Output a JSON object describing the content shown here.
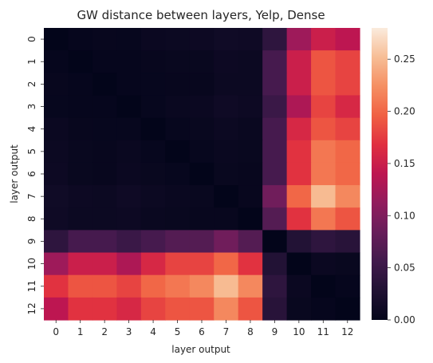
{
  "chart_data": {
    "type": "heatmap",
    "title": "GW distance between layers, Yelp, Dense",
    "xlabel": "layer output",
    "ylabel": "layer output",
    "x_categories": [
      "0",
      "1",
      "2",
      "3",
      "4",
      "5",
      "6",
      "7",
      "8",
      "9",
      "10",
      "11",
      "12"
    ],
    "y_categories": [
      "0",
      "1",
      "2",
      "3",
      "4",
      "5",
      "6",
      "7",
      "8",
      "9",
      "10",
      "11",
      "12"
    ],
    "colormap": "rocket",
    "vmin": 0.0,
    "vmax": 0.28,
    "colorbar_ticks": [
      0.0,
      0.05,
      0.1,
      0.15,
      0.2,
      0.25
    ],
    "colorbar_tick_labels": [
      "0.00",
      "0.05",
      "0.10",
      "0.15",
      "0.20",
      "0.25"
    ],
    "values": [
      [
        0.0,
        0.003,
        0.005,
        0.004,
        0.008,
        0.009,
        0.01,
        0.013,
        0.012,
        0.04,
        0.12,
        0.15,
        0.14
      ],
      [
        0.003,
        0.0,
        0.003,
        0.003,
        0.005,
        0.006,
        0.006,
        0.01,
        0.009,
        0.06,
        0.15,
        0.19,
        0.18
      ],
      [
        0.005,
        0.003,
        0.0,
        0.003,
        0.004,
        0.005,
        0.005,
        0.009,
        0.009,
        0.06,
        0.15,
        0.19,
        0.18
      ],
      [
        0.004,
        0.003,
        0.003,
        0.0,
        0.004,
        0.007,
        0.008,
        0.012,
        0.01,
        0.05,
        0.13,
        0.18,
        0.16
      ],
      [
        0.008,
        0.005,
        0.004,
        0.004,
        0.0,
        0.004,
        0.006,
        0.009,
        0.007,
        0.06,
        0.16,
        0.19,
        0.18
      ],
      [
        0.009,
        0.006,
        0.005,
        0.007,
        0.004,
        0.0,
        0.004,
        0.007,
        0.006,
        0.06,
        0.17,
        0.21,
        0.2
      ],
      [
        0.01,
        0.006,
        0.005,
        0.008,
        0.006,
        0.004,
        0.0,
        0.006,
        0.005,
        0.06,
        0.17,
        0.21,
        0.2
      ],
      [
        0.013,
        0.01,
        0.009,
        0.012,
        0.009,
        0.007,
        0.006,
        0.0,
        0.005,
        0.09,
        0.2,
        0.25,
        0.22
      ],
      [
        0.012,
        0.009,
        0.009,
        0.01,
        0.007,
        0.006,
        0.005,
        0.005,
        0.0,
        0.07,
        0.17,
        0.21,
        0.19
      ],
      [
        0.04,
        0.06,
        0.06,
        0.05,
        0.06,
        0.07,
        0.07,
        0.09,
        0.07,
        0.0,
        0.03,
        0.04,
        0.035
      ],
      [
        0.12,
        0.15,
        0.15,
        0.13,
        0.16,
        0.18,
        0.18,
        0.2,
        0.17,
        0.03,
        0.0,
        0.008,
        0.006
      ],
      [
        0.17,
        0.19,
        0.19,
        0.18,
        0.2,
        0.21,
        0.22,
        0.25,
        0.22,
        0.04,
        0.008,
        0.0,
        0.003
      ],
      [
        0.14,
        0.17,
        0.17,
        0.16,
        0.18,
        0.19,
        0.19,
        0.22,
        0.19,
        0.035,
        0.006,
        0.003,
        0.0
      ]
    ]
  }
}
